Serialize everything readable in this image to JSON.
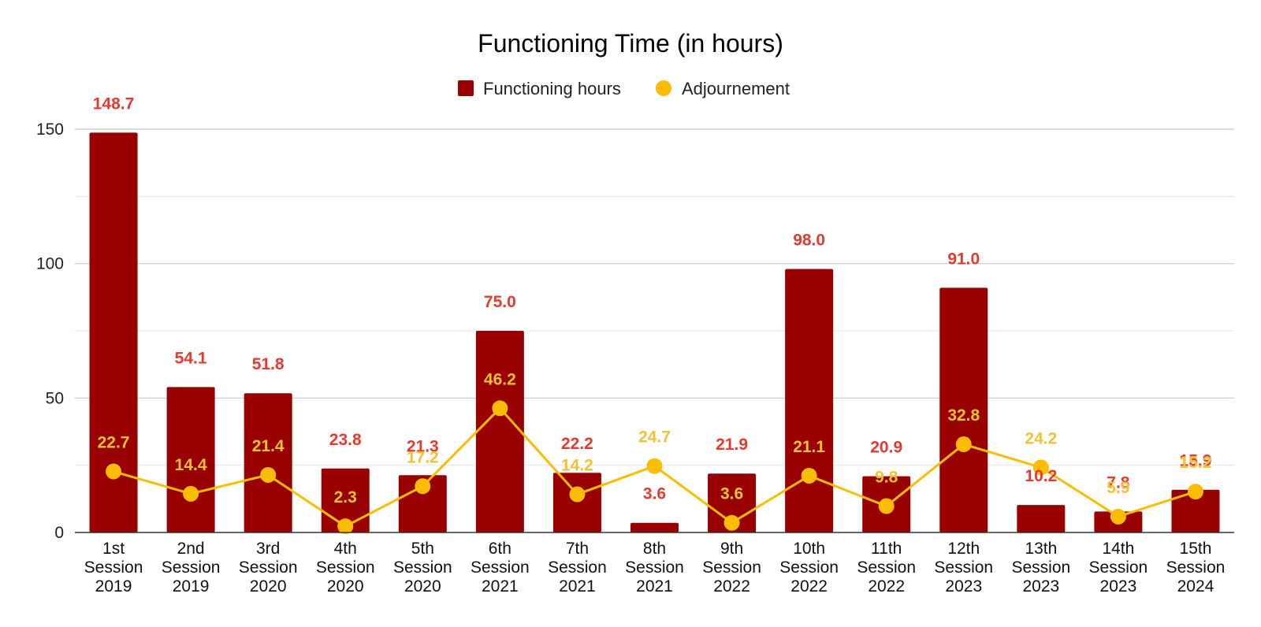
{
  "chart_data": {
    "type": "bar",
    "title": "Functioning Time (in hours)",
    "categories": [
      [
        "1st",
        "Session",
        "2019"
      ],
      [
        "2nd",
        "Session",
        "2019"
      ],
      [
        "3rd",
        "Session",
        "2020"
      ],
      [
        "4th",
        "Session",
        "2020"
      ],
      [
        "5th",
        "Session",
        "2020"
      ],
      [
        "6th",
        "Session",
        "2021"
      ],
      [
        "7th",
        "Session",
        "2021"
      ],
      [
        "8th",
        "Session",
        "2021"
      ],
      [
        "9th",
        "Session",
        "2022"
      ],
      [
        "10th",
        "Session",
        "2022"
      ],
      [
        "11th",
        "Session",
        "2022"
      ],
      [
        "12th",
        "Session",
        "2023"
      ],
      [
        "13th",
        "Session",
        "2023"
      ],
      [
        "14th",
        "Session",
        "2023"
      ],
      [
        "15th",
        "Session",
        "2024"
      ]
    ],
    "series": [
      {
        "name": "Functioning hours",
        "type": "bar",
        "color": "#990000",
        "label_color": "#e63a2e",
        "values": [
          148.7,
          54.1,
          51.8,
          23.8,
          21.3,
          75.0,
          22.2,
          3.6,
          21.9,
          98.0,
          20.9,
          91.0,
          10.2,
          7.8,
          15.9
        ],
        "labels": [
          "148.7",
          "54.1",
          "51.8",
          "23.8",
          "21.3",
          "75.0",
          "22.2",
          "3.6",
          "21.9",
          "98.0",
          "20.9",
          "91.0",
          "10.2",
          "7.8",
          "15.9"
        ]
      },
      {
        "name": "Adjournement",
        "type": "line",
        "color": "#fbbc04",
        "label_color": "#f1c232",
        "values": [
          22.7,
          14.4,
          21.4,
          2.3,
          17.2,
          46.2,
          14.2,
          24.7,
          3.6,
          21.1,
          9.8,
          32.8,
          24.2,
          5.9,
          15.2
        ],
        "labels": [
          "22.7",
          "14.4",
          "21.4",
          "2.3",
          "17.2",
          "46.2",
          "14.2",
          "24.7",
          "3.6",
          "21.1",
          "9.8",
          "32.8",
          "24.2",
          "5.9",
          "15.2"
        ]
      }
    ],
    "y_ticks": [
      0,
      50,
      100,
      150
    ],
    "ylim": [
      0,
      150
    ],
    "grid": true,
    "legend_position": "top-center"
  }
}
